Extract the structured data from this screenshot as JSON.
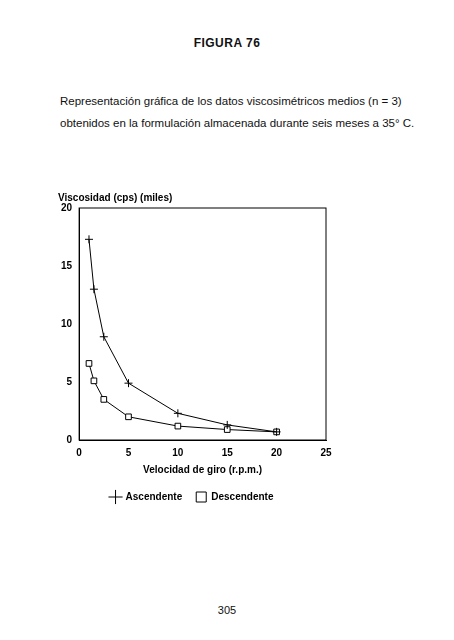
{
  "heading": "FIGURA 76",
  "caption": "Representación gráfica de los datos viscosimétricos medios (n = 3) obtenidos en la formulación almacenada durante seis meses a 35° C.",
  "page_number": "305",
  "chart_data": {
    "type": "line",
    "ylabel": "Viscosidad (cps) (miles)",
    "xlabel": "Velocidad de giro (r.p.m.)",
    "x": [
      1,
      1.5,
      2.5,
      5,
      10,
      15,
      20
    ],
    "series": [
      {
        "name": "Ascendente",
        "color": "#000000",
        "marker": "plus",
        "line_style": "solid",
        "values": [
          17.3,
          13.0,
          8.9,
          4.9,
          2.3,
          1.3,
          0.7
        ]
      },
      {
        "name": "Descendente",
        "color": "#000000",
        "marker": "square",
        "line_style": "solid",
        "values": [
          6.6,
          5.1,
          3.5,
          2.0,
          1.2,
          0.9,
          0.7
        ]
      }
    ],
    "xlim": [
      0,
      25
    ],
    "xticks": [
      0,
      5,
      10,
      15,
      20,
      25
    ],
    "ylim": [
      0,
      20
    ],
    "yticks": [
      0,
      5,
      10,
      15,
      20
    ],
    "grid": false,
    "legend": "bottom"
  }
}
